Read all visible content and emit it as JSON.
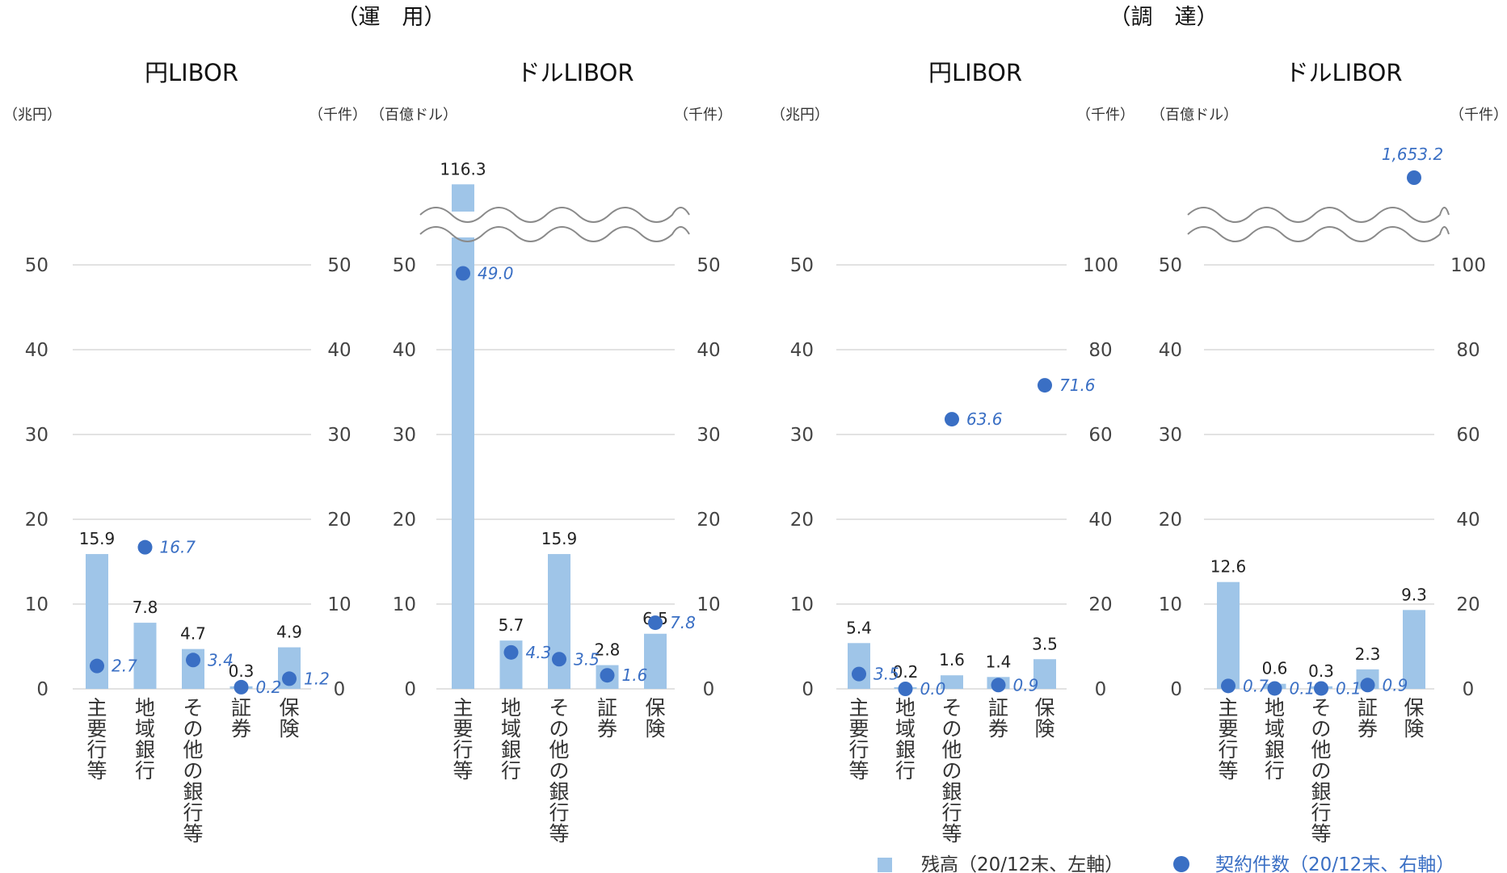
{
  "sections": [
    {
      "title": "（運　用）"
    },
    {
      "title": "（調　達）"
    }
  ],
  "colors": {
    "bar": "#9fc5e8",
    "dot": "#3a6fc4",
    "grid": "#d9d9d9",
    "break": "#8a8a8a",
    "dot_label": "#3a6fc4"
  },
  "legend": {
    "bars": "残高（20/12末、左軸）",
    "dots": "契約件数（20/12末、右軸）"
  },
  "chart_data": [
    {
      "type": "bar+scatter",
      "title": "円LIBOR",
      "left_unit": "（兆円）",
      "right_unit": "（千件）",
      "categories": [
        "主要行等",
        "地域銀行",
        "その他の銀行等",
        "証券",
        "保険"
      ],
      "bars": [
        15.9,
        7.8,
        4.7,
        0.3,
        4.9
      ],
      "bar_labels": [
        "15.9",
        "7.8",
        "4.7",
        "0.3",
        "4.9"
      ],
      "dots": [
        2.7,
        16.7,
        3.4,
        0.2,
        1.2
      ],
      "dot_labels": [
        "2.7",
        "16.7",
        "3.4",
        "0.2",
        "1.2"
      ],
      "left_ticks": [
        "0",
        "10",
        "20",
        "30",
        "40",
        "50"
      ],
      "right_ticks": [
        "0",
        "10",
        "20",
        "30",
        "40",
        "50"
      ],
      "left_ylim": [
        0,
        50
      ],
      "right_ylim": [
        0,
        50
      ],
      "axis_break": false,
      "grid": true
    },
    {
      "type": "bar+scatter",
      "title": "ドルLIBOR",
      "left_unit": "（百億ドル）",
      "right_unit": "（千件）",
      "categories": [
        "主要行等",
        "地域銀行",
        "その他の銀行等",
        "証券",
        "保険"
      ],
      "bars": [
        116.3,
        5.7,
        15.9,
        2.8,
        6.5
      ],
      "bar_labels": [
        "116.3",
        "5.7",
        "15.9",
        "2.8",
        "6.5"
      ],
      "dots": [
        49.0,
        4.3,
        3.5,
        1.6,
        7.8
      ],
      "dot_labels": [
        "49.0",
        "4.3",
        "3.5",
        "1.6",
        "7.8"
      ],
      "left_ticks": [
        "0",
        "10",
        "20",
        "30",
        "40",
        "50"
      ],
      "right_ticks": [
        "0",
        "10",
        "20",
        "30",
        "40",
        "50"
      ],
      "left_ylim": [
        0,
        50
      ],
      "right_ylim": [
        0,
        50
      ],
      "axis_break": true,
      "grid": true
    },
    {
      "type": "bar+scatter",
      "title": "円LIBOR",
      "left_unit": "（兆円）",
      "right_unit": "（千件）",
      "categories": [
        "主要行等",
        "地域銀行",
        "その他の銀行等",
        "証券",
        "保険"
      ],
      "bars": [
        5.4,
        0.2,
        1.6,
        1.4,
        3.5
      ],
      "bar_labels": [
        "5.4",
        "0.2",
        "1.6",
        "1.4",
        "3.5"
      ],
      "dots": [
        3.5,
        0.0,
        63.6,
        0.9,
        71.6
      ],
      "dot_labels": [
        "3.5",
        "0.0",
        "63.6",
        "0.9",
        "71.6"
      ],
      "left_ticks": [
        "0",
        "10",
        "20",
        "30",
        "40",
        "50"
      ],
      "right_ticks": [
        "0",
        "20",
        "40",
        "60",
        "80",
        "100"
      ],
      "left_ylim": [
        0,
        50
      ],
      "right_ylim": [
        0,
        100
      ],
      "axis_break": false,
      "grid": true
    },
    {
      "type": "bar+scatter",
      "title": "ドルLIBOR",
      "left_unit": "（百億ドル）",
      "right_unit": "（千件）",
      "categories": [
        "主要行等",
        "地域銀行",
        "その他の銀行等",
        "証券",
        "保険"
      ],
      "bars": [
        12.6,
        0.6,
        0.3,
        2.3,
        9.3
      ],
      "bar_labels": [
        "12.6",
        "0.6",
        "0.3",
        "2.3",
        "9.3"
      ],
      "dots": [
        0.7,
        0.1,
        0.1,
        0.9,
        1653.2
      ],
      "dot_labels": [
        "0.7",
        "0.1",
        "0.1",
        "0.9",
        "1,653.2"
      ],
      "left_ticks": [
        "0",
        "10",
        "20",
        "30",
        "40",
        "50"
      ],
      "right_ticks": [
        "0",
        "20",
        "40",
        "60",
        "80",
        "100"
      ],
      "left_ylim": [
        0,
        50
      ],
      "right_ylim": [
        0,
        100
      ],
      "axis_break": true,
      "grid": true
    }
  ]
}
